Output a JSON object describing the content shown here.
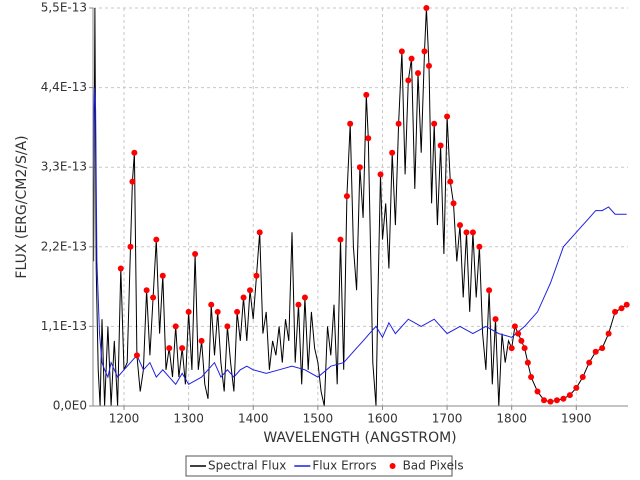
{
  "chart_data": {
    "type": "line",
    "x_label": "WAVELENGTH (ANGSTROM)",
    "y_label": "FLUX (ERG/CM2/S/A)",
    "xlim": [
      1152,
      1980
    ],
    "ylim": [
      0,
      5.5e-13
    ],
    "xticks": [
      1200,
      1300,
      1400,
      1500,
      1600,
      1700,
      1800,
      1900
    ],
    "yticks": [
      {
        "value": 0,
        "label": "0,0E0"
      },
      {
        "value": 1.1e-13,
        "label": "1,1E-13"
      },
      {
        "value": 2.2e-13,
        "label": "2,2E-13"
      },
      {
        "value": 3.3e-13,
        "label": "3,3E-13"
      },
      {
        "value": 4.4e-13,
        "label": "4,4E-13"
      },
      {
        "value": 5.5e-13,
        "label": "5,5E-13"
      }
    ],
    "grid": true,
    "legend": "bottom",
    "series": [
      {
        "name": "Spectral Flux",
        "color": "#000000",
        "style": "line",
        "x": [
          1153,
          1155,
          1157,
          1160,
          1163,
          1166,
          1170,
          1175,
          1180,
          1185,
          1190,
          1195,
          1200,
          1205,
          1210,
          1213,
          1216,
          1220,
          1225,
          1230,
          1235,
          1240,
          1245,
          1250,
          1255,
          1260,
          1265,
          1270,
          1275,
          1280,
          1285,
          1290,
          1295,
          1300,
          1305,
          1310,
          1315,
          1320,
          1325,
          1330,
          1335,
          1340,
          1345,
          1350,
          1355,
          1360,
          1365,
          1370,
          1375,
          1380,
          1385,
          1390,
          1395,
          1400,
          1405,
          1410,
          1415,
          1420,
          1425,
          1430,
          1435,
          1440,
          1445,
          1450,
          1455,
          1460,
          1465,
          1470,
          1475,
          1480,
          1485,
          1490,
          1495,
          1500,
          1505,
          1510,
          1515,
          1520,
          1525,
          1530,
          1535,
          1540,
          1545,
          1550,
          1555,
          1560,
          1565,
          1570,
          1575,
          1578,
          1582,
          1585,
          1590,
          1593,
          1597,
          1600,
          1605,
          1610,
          1615,
          1620,
          1625,
          1630,
          1635,
          1640,
          1645,
          1650,
          1655,
          1660,
          1665,
          1668,
          1672,
          1676,
          1680,
          1685,
          1690,
          1695,
          1700,
          1705,
          1710,
          1715,
          1720,
          1725,
          1730,
          1735,
          1740,
          1745,
          1750,
          1755,
          1760,
          1765,
          1770,
          1775,
          1780,
          1785,
          1790,
          1795,
          1800,
          1805,
          1810,
          1815,
          1820,
          1825,
          1830,
          1840,
          1850,
          1860,
          1870,
          1880,
          1890,
          1900,
          1910,
          1920,
          1930,
          1940,
          1950,
          1960,
          1970,
          1978
        ],
        "values": [
          2e-13,
          5.5e-13,
          1.9e-13,
          5e-14,
          0,
          1.2e-13,
          0,
          1.1e-13,
          0,
          9e-14,
          0,
          1.9e-13,
          5e-14,
          6e-14,
          2.2e-13,
          3.1e-13,
          3.5e-13,
          7e-14,
          2e-14,
          5e-14,
          1.6e-13,
          7e-14,
          1.5e-13,
          2.3e-13,
          1e-13,
          1.8e-13,
          5e-14,
          8e-14,
          4e-14,
          1.1e-13,
          4e-14,
          8e-14,
          3e-14,
          1.3e-13,
          5e-14,
          2.1e-13,
          5e-14,
          9e-14,
          3e-14,
          1e-14,
          1.4e-13,
          7e-14,
          1.3e-13,
          6e-14,
          2e-14,
          1.1e-13,
          6e-14,
          2e-14,
          1.3e-13,
          9e-14,
          1.5e-13,
          9e-14,
          1.6e-13,
          1.2e-13,
          1.8e-13,
          2.4e-13,
          1e-13,
          1.3e-13,
          5e-14,
          9e-14,
          7e-14,
          1.1e-13,
          6e-14,
          1.2e-13,
          9e-14,
          2.4e-13,
          6e-14,
          1.4e-13,
          3e-14,
          1.5e-13,
          5e-14,
          1.3e-13,
          8e-14,
          6e-14,
          2e-14,
          0,
          1.1e-13,
          7e-14,
          1.4e-13,
          3e-14,
          2.3e-13,
          5e-14,
          2.9e-13,
          3.9e-13,
          2.2e-13,
          1.6e-13,
          3.3e-13,
          2.6e-13,
          4.3e-13,
          3.7e-13,
          2e-13,
          6e-14,
          0,
          1.5e-13,
          3.2e-13,
          2.3e-13,
          2.8e-13,
          1.9e-13,
          3.5e-13,
          2.5e-13,
          3.9e-13,
          4.9e-13,
          3.2e-13,
          4.5e-13,
          4.8e-13,
          3e-13,
          4.6e-13,
          3.5e-13,
          4.9e-13,
          5.5e-13,
          4.7e-13,
          2.8e-13,
          3.9e-13,
          2.5e-13,
          3.6e-13,
          2.1e-13,
          4e-13,
          3.1e-13,
          2.8e-13,
          2e-13,
          2.5e-13,
          1.5e-13,
          2.4e-13,
          1.3e-13,
          2.4e-13,
          1.5e-13,
          2.2e-13,
          1e-13,
          5e-14,
          1.6e-13,
          3e-14,
          1.2e-13,
          0,
          1e-13,
          6e-14,
          9e-14,
          8e-14,
          1.1e-13,
          1e-13,
          9e-14,
          8e-14,
          6e-14,
          4e-14,
          2e-14,
          8e-15,
          6e-15,
          8e-15,
          1e-14,
          1.5e-14,
          2.5e-14,
          4e-14,
          6e-14,
          7.5e-14,
          8e-14,
          1e-13,
          1.3e-13,
          1.35e-13,
          1.4e-13
        ]
      },
      {
        "name": "Flux Errors",
        "color": "#1f1fe0",
        "style": "line",
        "x": [
          1152,
          1154,
          1156,
          1158,
          1162,
          1166,
          1170,
          1175,
          1180,
          1190,
          1200,
          1210,
          1220,
          1230,
          1240,
          1250,
          1260,
          1270,
          1280,
          1290,
          1300,
          1310,
          1320,
          1330,
          1340,
          1350,
          1360,
          1370,
          1380,
          1390,
          1400,
          1420,
          1440,
          1460,
          1480,
          1500,
          1520,
          1540,
          1560,
          1570,
          1580,
          1590,
          1600,
          1610,
          1620,
          1640,
          1660,
          1680,
          1700,
          1720,
          1740,
          1760,
          1780,
          1800,
          1820,
          1840,
          1860,
          1880,
          1900,
          1910,
          1920,
          1930,
          1940,
          1950,
          1960,
          1978
        ],
        "values": [
          3e-13,
          4.4e-13,
          4.1e-13,
          2e-13,
          1e-13,
          6e-14,
          5e-14,
          4e-14,
          6e-14,
          4e-14,
          5e-14,
          6e-14,
          7e-14,
          5e-14,
          6e-14,
          4e-14,
          5e-14,
          4e-14,
          3e-14,
          4.5e-14,
          3e-14,
          3.5e-14,
          4e-14,
          5e-14,
          6e-14,
          4e-14,
          5e-14,
          4e-14,
          5e-14,
          5.5e-14,
          5e-14,
          4.5e-14,
          5e-14,
          5.5e-14,
          5e-14,
          4e-14,
          5.5e-14,
          6e-14,
          8e-14,
          9e-14,
          1e-13,
          1.1e-13,
          9.5e-14,
          1.15e-13,
          1e-13,
          1.2e-13,
          1.1e-13,
          1.2e-13,
          1e-13,
          1.1e-13,
          1e-13,
          1.1e-13,
          1e-13,
          9.5e-14,
          1.1e-13,
          1.3e-13,
          1.7e-13,
          2.2e-13,
          2.4e-13,
          2.5e-13,
          2.6e-13,
          2.7e-13,
          2.7e-13,
          2.75e-13,
          2.65e-13,
          2.65e-13
        ]
      },
      {
        "name": "Bad Pixels",
        "color": "#ff0000",
        "style": "points",
        "x": [
          1195,
          1210,
          1213,
          1216,
          1220,
          1235,
          1245,
          1250,
          1260,
          1270,
          1280,
          1290,
          1300,
          1310,
          1320,
          1335,
          1345,
          1360,
          1375,
          1385,
          1395,
          1405,
          1410,
          1470,
          1480,
          1535,
          1545,
          1550,
          1565,
          1575,
          1578,
          1597,
          1615,
          1625,
          1630,
          1640,
          1645,
          1655,
          1665,
          1668,
          1672,
          1680,
          1690,
          1700,
          1705,
          1710,
          1720,
          1730,
          1740,
          1750,
          1765,
          1775,
          1800,
          1805,
          1810,
          1815,
          1820,
          1825,
          1830,
          1840,
          1850,
          1860,
          1870,
          1880,
          1890,
          1900,
          1910,
          1920,
          1930,
          1940,
          1950,
          1960,
          1970,
          1978
        ],
        "values": [
          1.9e-13,
          2.2e-13,
          3.1e-13,
          3.5e-13,
          7e-14,
          1.6e-13,
          1.5e-13,
          2.3e-13,
          1.8e-13,
          8e-14,
          1.1e-13,
          8e-14,
          1.3e-13,
          2.1e-13,
          9e-14,
          1.4e-13,
          1.3e-13,
          1.1e-13,
          1.3e-13,
          1.5e-13,
          1.6e-13,
          1.8e-13,
          2.4e-13,
          1.4e-13,
          1.5e-13,
          2.3e-13,
          2.9e-13,
          3.9e-13,
          3.3e-13,
          4.3e-13,
          3.7e-13,
          3.2e-13,
          3.5e-13,
          3.9e-13,
          4.9e-13,
          4.5e-13,
          4.8e-13,
          4.6e-13,
          4.9e-13,
          5.5e-13,
          4.7e-13,
          3.9e-13,
          3.6e-13,
          4e-13,
          3.1e-13,
          2.8e-13,
          2.5e-13,
          2.4e-13,
          2.4e-13,
          2.2e-13,
          1.6e-13,
          1.2e-13,
          8e-14,
          1.1e-13,
          1e-13,
          9e-14,
          8e-14,
          6e-14,
          4e-14,
          2e-14,
          8e-15,
          6e-15,
          8e-15,
          1e-14,
          1.5e-14,
          2.5e-14,
          4e-14,
          6e-14,
          7.5e-14,
          8e-14,
          1e-13,
          1.3e-13,
          1.35e-13,
          1.4e-13
        ]
      }
    ]
  }
}
